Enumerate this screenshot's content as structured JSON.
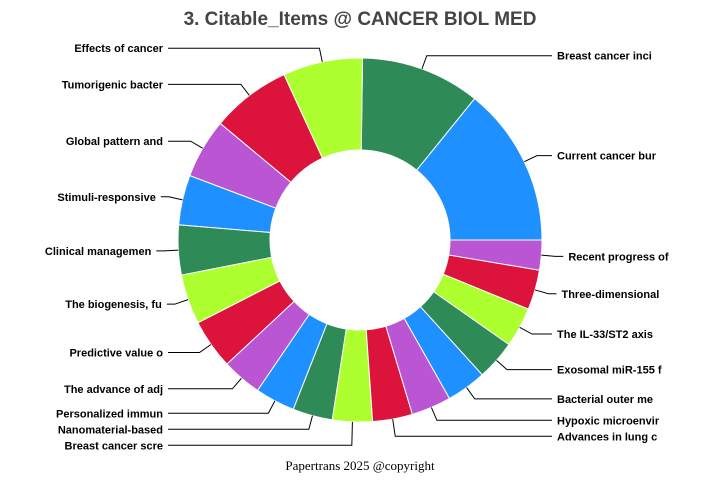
{
  "chart_data": {
    "type": "pie",
    "title": "3. Citable_Items @ CANCER BIOL MED",
    "footer": "Papertrans 2025 @copyright",
    "donut": true,
    "colors": [
      "#1E90FF",
      "#2E8B57",
      "#ADFF2F",
      "#DC143C",
      "#BA55D3"
    ],
    "slices": [
      {
        "label": "Current cancer bur",
        "value": 16
      },
      {
        "label": "Breast cancer inci",
        "value": 12
      },
      {
        "label": "Effects of cancer",
        "value": 8
      },
      {
        "label": "Tumorigenic bacter",
        "value": 8
      },
      {
        "label": "Global pattern and",
        "value": 6
      },
      {
        "label": "Stimuli-responsive",
        "value": 5
      },
      {
        "label": "Clinical managemen",
        "value": 5
      },
      {
        "label": "The biogenesis, fu",
        "value": 5
      },
      {
        "label": "Predictive value o",
        "value": 5
      },
      {
        "label": "The advance of adj",
        "value": 4
      },
      {
        "label": "Personalized immun",
        "value": 4
      },
      {
        "label": "Nanomaterial-based",
        "value": 4
      },
      {
        "label": "Breast cancer scre",
        "value": 4
      },
      {
        "label": "Advances in lung c",
        "value": 4
      },
      {
        "label": "Hypoxic microenvir",
        "value": 4
      },
      {
        "label": "Bacterial outer me",
        "value": 4
      },
      {
        "label": "Exosomal miR-155 f",
        "value": 4
      },
      {
        "label": "The IL-33/ST2 axis",
        "value": 4
      },
      {
        "label": "Three-dimensional",
        "value": 4
      },
      {
        "label": "Recent progress of",
        "value": 3
      }
    ]
  }
}
